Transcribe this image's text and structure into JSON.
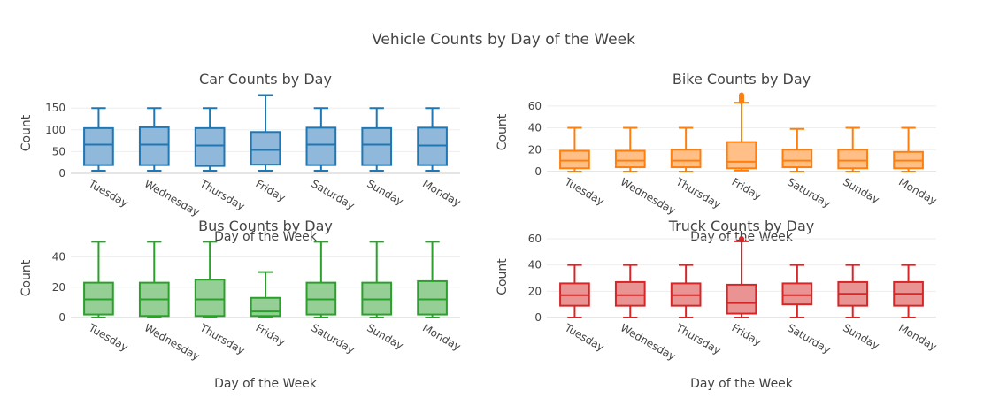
{
  "title": "Vehicle Counts by Day of the Week",
  "chart_data": [
    {
      "type": "box",
      "title": "Car Counts by Day",
      "xlabel": "Day of the Week",
      "ylabel": "Count",
      "color": "#1f77b4",
      "fill": "#8fb8da",
      "ylim": [
        0,
        185
      ],
      "yticks": [
        0,
        50,
        100,
        150
      ],
      "categories": [
        "Tuesday",
        "Wednesday",
        "Thursday",
        "Friday",
        "Saturday",
        "Sunday",
        "Monday"
      ],
      "boxes": [
        {
          "min": 6,
          "q1": 19,
          "median": 66,
          "q3": 104,
          "max": 150
        },
        {
          "min": 6,
          "q1": 19,
          "median": 66,
          "q3": 106,
          "max": 150
        },
        {
          "min": 6,
          "q1": 17,
          "median": 64,
          "q3": 104,
          "max": 150
        },
        {
          "min": 6,
          "q1": 20,
          "median": 54,
          "q3": 95,
          "max": 180
        },
        {
          "min": 6,
          "q1": 19,
          "median": 66,
          "q3": 105,
          "max": 150
        },
        {
          "min": 6,
          "q1": 19,
          "median": 66,
          "q3": 104,
          "max": 150
        },
        {
          "min": 6,
          "q1": 19,
          "median": 64,
          "q3": 105,
          "max": 150
        }
      ]
    },
    {
      "type": "box",
      "title": "Bike Counts by Day",
      "xlabel": "Day of the Week",
      "ylabel": "Count",
      "color": "#ff7f0e",
      "fill": "#ffbf87",
      "ylim": [
        0,
        72
      ],
      "yticks": [
        0,
        20,
        40,
        60
      ],
      "categories": [
        "Tuesday",
        "Wednesday",
        "Thursday",
        "Friday",
        "Saturday",
        "Sunday",
        "Monday"
      ],
      "boxes": [
        {
          "min": 0,
          "q1": 3,
          "median": 10,
          "q3": 19,
          "max": 40
        },
        {
          "min": 0,
          "q1": 4,
          "median": 10,
          "q3": 19,
          "max": 40
        },
        {
          "min": 0,
          "q1": 4,
          "median": 10,
          "q3": 20,
          "max": 40
        },
        {
          "min": 1,
          "q1": 3,
          "median": 9,
          "q3": 27,
          "max": 63,
          "outliers": [
            64,
            65,
            66,
            67,
            68,
            69,
            70
          ]
        },
        {
          "min": 0,
          "q1": 4,
          "median": 10,
          "q3": 20,
          "max": 39
        },
        {
          "min": 0,
          "q1": 3,
          "median": 10,
          "q3": 20,
          "max": 40
        },
        {
          "min": 0,
          "q1": 3,
          "median": 10,
          "q3": 18,
          "max": 40
        }
      ]
    },
    {
      "type": "box",
      "title": "Bus Counts by Day",
      "xlabel": "Day of the Week",
      "ylabel": "Count",
      "color": "#2ca02c",
      "fill": "#95cf95",
      "ylim": [
        0,
        52
      ],
      "yticks": [
        0,
        20,
        40
      ],
      "categories": [
        "Tuesday",
        "Wednesday",
        "Thursday",
        "Friday",
        "Saturday",
        "Sunday",
        "Monday"
      ],
      "boxes": [
        {
          "min": 0,
          "q1": 2,
          "median": 12,
          "q3": 23,
          "max": 50
        },
        {
          "min": 0,
          "q1": 1,
          "median": 12,
          "q3": 23,
          "max": 50
        },
        {
          "min": 0,
          "q1": 1,
          "median": 12,
          "q3": 25,
          "max": 50
        },
        {
          "min": 0,
          "q1": 1,
          "median": 4,
          "q3": 13,
          "max": 30
        },
        {
          "min": 0,
          "q1": 2,
          "median": 12,
          "q3": 23,
          "max": 50
        },
        {
          "min": 0,
          "q1": 2,
          "median": 12,
          "q3": 23,
          "max": 50
        },
        {
          "min": 0,
          "q1": 2,
          "median": 12,
          "q3": 24,
          "max": 50
        }
      ]
    },
    {
      "type": "box",
      "title": "Truck Counts by Day",
      "xlabel": "Day of the Week",
      "ylabel": "Count",
      "color": "#d62728",
      "fill": "#ea9393",
      "ylim": [
        0,
        62
      ],
      "yticks": [
        0,
        20,
        40,
        60
      ],
      "categories": [
        "Tuesday",
        "Wednesday",
        "Thursday",
        "Friday",
        "Saturday",
        "Sunday",
        "Monday"
      ],
      "boxes": [
        {
          "min": 0,
          "q1": 9,
          "median": 17,
          "q3": 26,
          "max": 40
        },
        {
          "min": 0,
          "q1": 9,
          "median": 17,
          "q3": 27,
          "max": 40
        },
        {
          "min": 0,
          "q1": 9,
          "median": 17,
          "q3": 26,
          "max": 40
        },
        {
          "min": 0,
          "q1": 3,
          "median": 11,
          "q3": 25,
          "max": 58,
          "outliers": [
            59,
            60
          ]
        },
        {
          "min": 0,
          "q1": 10,
          "median": 17,
          "q3": 26,
          "max": 40
        },
        {
          "min": 0,
          "q1": 9,
          "median": 18,
          "q3": 27,
          "max": 40
        },
        {
          "min": 0,
          "q1": 9,
          "median": 18,
          "q3": 27,
          "max": 40
        }
      ]
    }
  ]
}
